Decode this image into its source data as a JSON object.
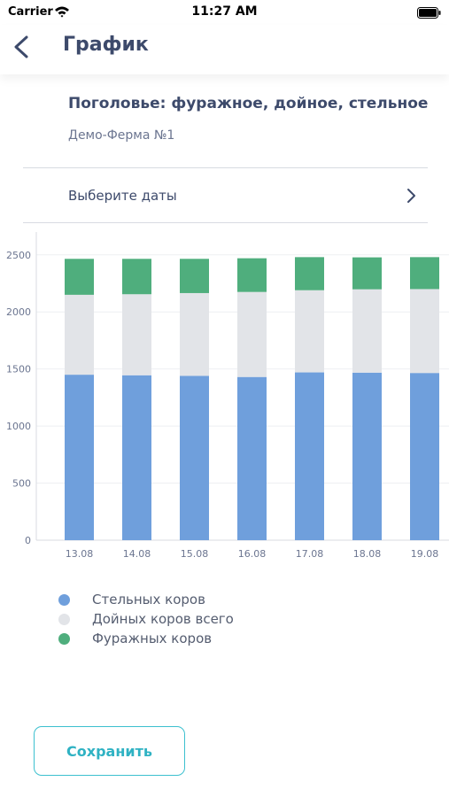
{
  "status_bar": {
    "carrier": "Carrier",
    "time": "11:27 AM"
  },
  "nav": {
    "title": "График",
    "back_icon": "chevron-left-icon"
  },
  "report": {
    "title": "Поголовье: фуражное, дойное, стельное",
    "farm": "Демо-Ферма №1"
  },
  "date_picker": {
    "label": "Выберите даты",
    "icon": "chevron-right-icon"
  },
  "chart_data": {
    "type": "bar",
    "stacked": true,
    "categories": [
      "13.08",
      "14.08",
      "15.08",
      "16.08",
      "17.08",
      "18.08",
      "19.08"
    ],
    "series": [
      {
        "name": "Стельных коров",
        "color": "#6f9fdc",
        "values": [
          1450,
          1445,
          1440,
          1430,
          1470,
          1468,
          1465
        ]
      },
      {
        "name": "Дойных коров всего",
        "color": "#e2e4e8",
        "values": [
          700,
          710,
          725,
          745,
          720,
          730,
          735
        ]
      },
      {
        "name": "Фуражных коров",
        "color": "#4fae7d",
        "values": [
          315,
          310,
          300,
          295,
          290,
          280,
          280
        ]
      }
    ],
    "yticks": [
      0,
      500,
      1000,
      1500,
      2000,
      2500
    ],
    "ylim": [
      0,
      2700
    ],
    "grid": true,
    "legend_position": "bottom-left"
  },
  "actions": {
    "save_label": "Сохранить"
  }
}
